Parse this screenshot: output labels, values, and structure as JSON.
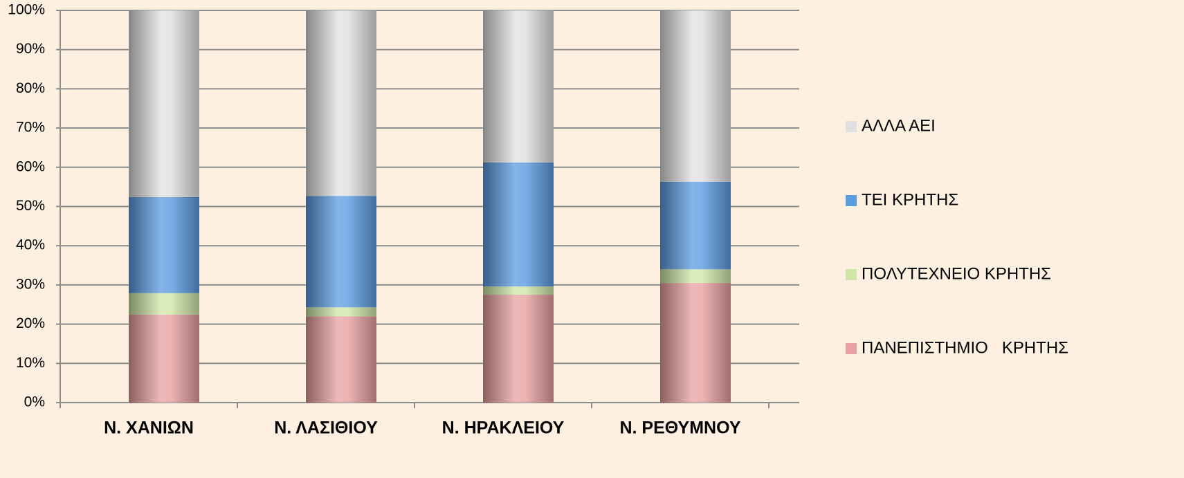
{
  "chart_data": {
    "type": "stacked_bar",
    "categories": [
      "Ν. ΧΑΝΙΩΝ",
      "Ν. ΛΑΣΙΘΙΟΥ",
      "Ν. ΗΡΑΚΛΕΙΟΥ",
      "Ν. ΡΕΘΥΜΝΟΥ"
    ],
    "series": [
      {
        "name": "ΠΑΝΕΠΙΣΤΗΜΙΟ   ΚΡΗΤΗΣ",
        "color": "#e8a0a0",
        "values": [
          22.4,
          22.0,
          27.5,
          30.5
        ]
      },
      {
        "name": "ΠΟΛΥΤΕΧΝΕΙΟ ΚΡΗΤΗΣ",
        "color": "#cfe6a8",
        "values": [
          5.5,
          2.3,
          2.1,
          3.5
        ]
      },
      {
        "name": "ΤΕΙ ΚΡΗΤΗΣ",
        "color": "#5b9be0",
        "values": [
          24.5,
          28.4,
          31.6,
          22.3
        ]
      },
      {
        "name": "ΑΛΛΑ ΑΕΙ",
        "color": "#e0e0e0",
        "values": [
          47.6,
          47.3,
          38.8,
          43.7
        ]
      }
    ],
    "ylim": [
      0,
      100
    ],
    "yticks": [
      {
        "value": 0,
        "label": "0%"
      },
      {
        "value": 10,
        "label": "10%"
      },
      {
        "value": 20,
        "label": "20%"
      },
      {
        "value": 30,
        "label": "30%"
      },
      {
        "value": 40,
        "label": "40%"
      },
      {
        "value": 50,
        "label": "50%"
      },
      {
        "value": 60,
        "label": "60%"
      },
      {
        "value": 70,
        "label": "70%"
      },
      {
        "value": 80,
        "label": "80%"
      },
      {
        "value": 90,
        "label": "90%"
      },
      {
        "value": 100,
        "label": "100%"
      }
    ],
    "grid": true,
    "legend": "right"
  }
}
